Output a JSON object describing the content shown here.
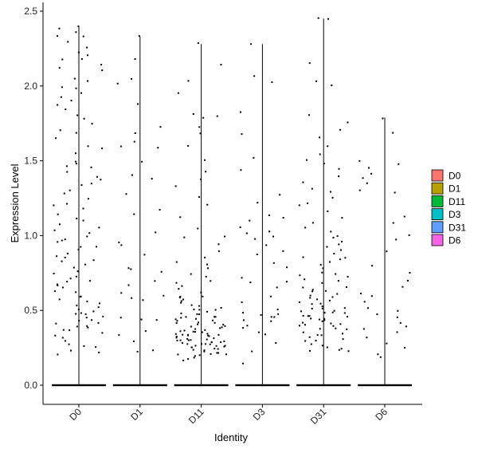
{
  "chart_data": {
    "type": "violin",
    "xlabel": "Identity",
    "ylabel": "Expression Level",
    "ylim": [
      -0.12,
      2.55
    ],
    "yticks": [
      0.0,
      0.5,
      1.0,
      1.5,
      2.0,
      2.5
    ],
    "ytick_labels": [
      "0.0",
      "0.5",
      "1.0",
      "1.5",
      "2.0",
      "2.5"
    ],
    "categories": [
      "D0",
      "D1",
      "D11",
      "D3",
      "D31",
      "D6"
    ],
    "fill_colors": [
      "#F8766D",
      "#B79F00",
      "#00BA38",
      "#00BFC4",
      "#619CFF",
      "#F564E3"
    ],
    "max_values": [
      2.4,
      2.33,
      2.28,
      2.28,
      2.45,
      1.79
    ],
    "nonzero_points": [
      [
        2.4,
        2.38,
        2.36,
        2.34,
        2.33,
        2.3,
        2.25,
        2.22,
        2.2,
        2.18,
        2.17,
        2.15,
        2.12,
        2.1,
        2.05,
        2.03,
        2.0,
        1.98,
        1.95,
        1.93,
        1.9,
        1.88,
        1.85,
        1.8,
        1.78,
        1.75,
        1.7,
        1.68,
        1.65,
        1.6,
        1.58,
        1.55,
        1.5,
        1.48,
        1.46,
        1.45,
        1.43,
        1.4,
        1.38,
        1.35,
        1.33,
        1.3,
        1.28,
        1.25,
        1.22,
        1.2,
        1.18,
        1.15,
        1.12,
        1.1,
        1.08,
        1.05,
        1.03,
        1.02,
        1.0,
        0.98,
        0.96,
        0.95,
        0.93,
        0.92,
        0.9,
        0.88,
        0.86,
        0.85,
        0.83,
        0.82,
        0.8,
        0.78,
        0.76,
        0.75,
        0.73,
        0.72,
        0.7,
        0.69,
        0.68,
        0.66,
        0.65,
        0.63,
        0.62,
        0.6,
        0.59,
        0.58,
        0.56,
        0.55,
        0.54,
        0.52,
        0.51,
        0.5,
        0.49,
        0.48,
        0.47,
        0.46,
        0.45,
        0.44,
        0.43,
        0.42,
        0.41,
        0.4,
        0.39,
        0.38,
        0.37,
        0.36,
        0.35,
        0.33,
        0.32,
        0.3,
        0.28,
        0.26,
        0.25,
        0.23,
        0.22,
        0.2
      ],
      [
        2.33,
        2.18,
        2.04,
        2.02,
        1.88,
        1.72,
        1.68,
        1.62,
        1.6,
        1.58,
        1.49,
        1.4,
        1.38,
        1.28,
        1.18,
        1.15,
        1.02,
        0.95,
        0.94,
        0.88,
        0.78,
        0.77,
        0.76,
        0.7,
        0.67,
        0.62,
        0.6,
        0.58,
        0.57,
        0.45,
        0.44,
        0.44,
        0.36,
        0.33,
        0.3,
        0.24,
        0.23
      ],
      [
        2.28,
        2.14,
        2.03,
        1.95,
        1.82,
        1.8,
        1.78,
        1.72,
        1.68,
        1.6,
        1.5,
        1.43,
        1.37,
        1.33,
        1.25,
        1.2,
        1.12,
        1.05,
        1.0,
        0.98,
        0.95,
        0.9,
        0.86,
        0.82,
        0.8,
        0.78,
        0.75,
        0.72,
        0.7,
        0.68,
        0.66,
        0.64,
        0.62,
        0.6,
        0.59,
        0.58,
        0.57,
        0.56,
        0.55,
        0.54,
        0.53,
        0.52,
        0.51,
        0.5,
        0.5,
        0.49,
        0.48,
        0.48,
        0.47,
        0.46,
        0.46,
        0.45,
        0.45,
        0.44,
        0.44,
        0.43,
        0.43,
        0.42,
        0.42,
        0.41,
        0.41,
        0.4,
        0.4,
        0.39,
        0.39,
        0.38,
        0.38,
        0.37,
        0.37,
        0.36,
        0.36,
        0.35,
        0.35,
        0.35,
        0.34,
        0.34,
        0.34,
        0.33,
        0.33,
        0.33,
        0.32,
        0.32,
        0.32,
        0.31,
        0.31,
        0.31,
        0.3,
        0.3,
        0.3,
        0.3,
        0.29,
        0.29,
        0.29,
        0.28,
        0.28,
        0.28,
        0.28,
        0.27,
        0.27,
        0.27,
        0.26,
        0.26,
        0.26,
        0.25,
        0.25,
        0.25,
        0.24,
        0.24,
        0.23,
        0.23,
        0.22,
        0.22,
        0.21,
        0.21,
        0.2,
        0.2,
        0.19,
        0.18,
        0.17,
        0.16
      ],
      [
        2.28,
        2.06,
        2.02,
        1.82,
        1.68,
        1.52,
        1.44,
        1.28,
        1.22,
        1.13,
        1.12,
        1.1,
        1.05,
        1.03,
        1.02,
        1.0,
        0.98,
        0.94,
        0.9,
        0.88,
        0.82,
        0.78,
        0.72,
        0.7,
        0.68,
        0.65,
        0.6,
        0.55,
        0.5,
        0.49,
        0.48,
        0.47,
        0.45,
        0.45,
        0.44,
        0.42,
        0.4,
        0.38,
        0.36,
        0.34,
        0.28,
        0.22,
        0.14
      ],
      [
        2.45,
        2.44,
        2.16,
        2.03,
        2.01,
        1.8,
        1.75,
        1.7,
        1.65,
        1.6,
        1.55,
        1.5,
        1.48,
        1.45,
        1.4,
        1.36,
        1.32,
        1.3,
        1.26,
        1.22,
        1.2,
        1.16,
        1.12,
        1.08,
        1.05,
        1.03,
        1.0,
        0.98,
        0.96,
        0.94,
        0.92,
        0.9,
        0.88,
        0.86,
        0.85,
        0.84,
        0.82,
        0.8,
        0.78,
        0.76,
        0.75,
        0.74,
        0.72,
        0.7,
        0.69,
        0.68,
        0.66,
        0.65,
        0.64,
        0.63,
        0.62,
        0.61,
        0.6,
        0.59,
        0.58,
        0.57,
        0.56,
        0.55,
        0.55,
        0.54,
        0.53,
        0.52,
        0.52,
        0.51,
        0.5,
        0.5,
        0.49,
        0.48,
        0.48,
        0.47,
        0.46,
        0.46,
        0.45,
        0.45,
        0.44,
        0.44,
        0.43,
        0.43,
        0.42,
        0.42,
        0.41,
        0.4,
        0.4,
        0.39,
        0.38,
        0.38,
        0.37,
        0.36,
        0.35,
        0.34,
        0.33,
        0.32,
        0.31,
        0.3,
        0.29,
        0.28,
        0.27,
        0.26,
        0.25,
        0.24,
        0.23,
        0.22
      ],
      [
        1.79,
        1.68,
        1.5,
        1.48,
        1.46,
        1.42,
        1.38,
        1.35,
        1.3,
        1.28,
        1.12,
        1.08,
        1.0,
        0.98,
        0.9,
        0.8,
        0.75,
        0.7,
        0.65,
        0.62,
        0.6,
        0.55,
        0.52,
        0.5,
        0.48,
        0.45,
        0.42,
        0.4,
        0.38,
        0.35,
        0.32,
        0.28,
        0.25,
        0.2,
        0.18
      ]
    ]
  }
}
